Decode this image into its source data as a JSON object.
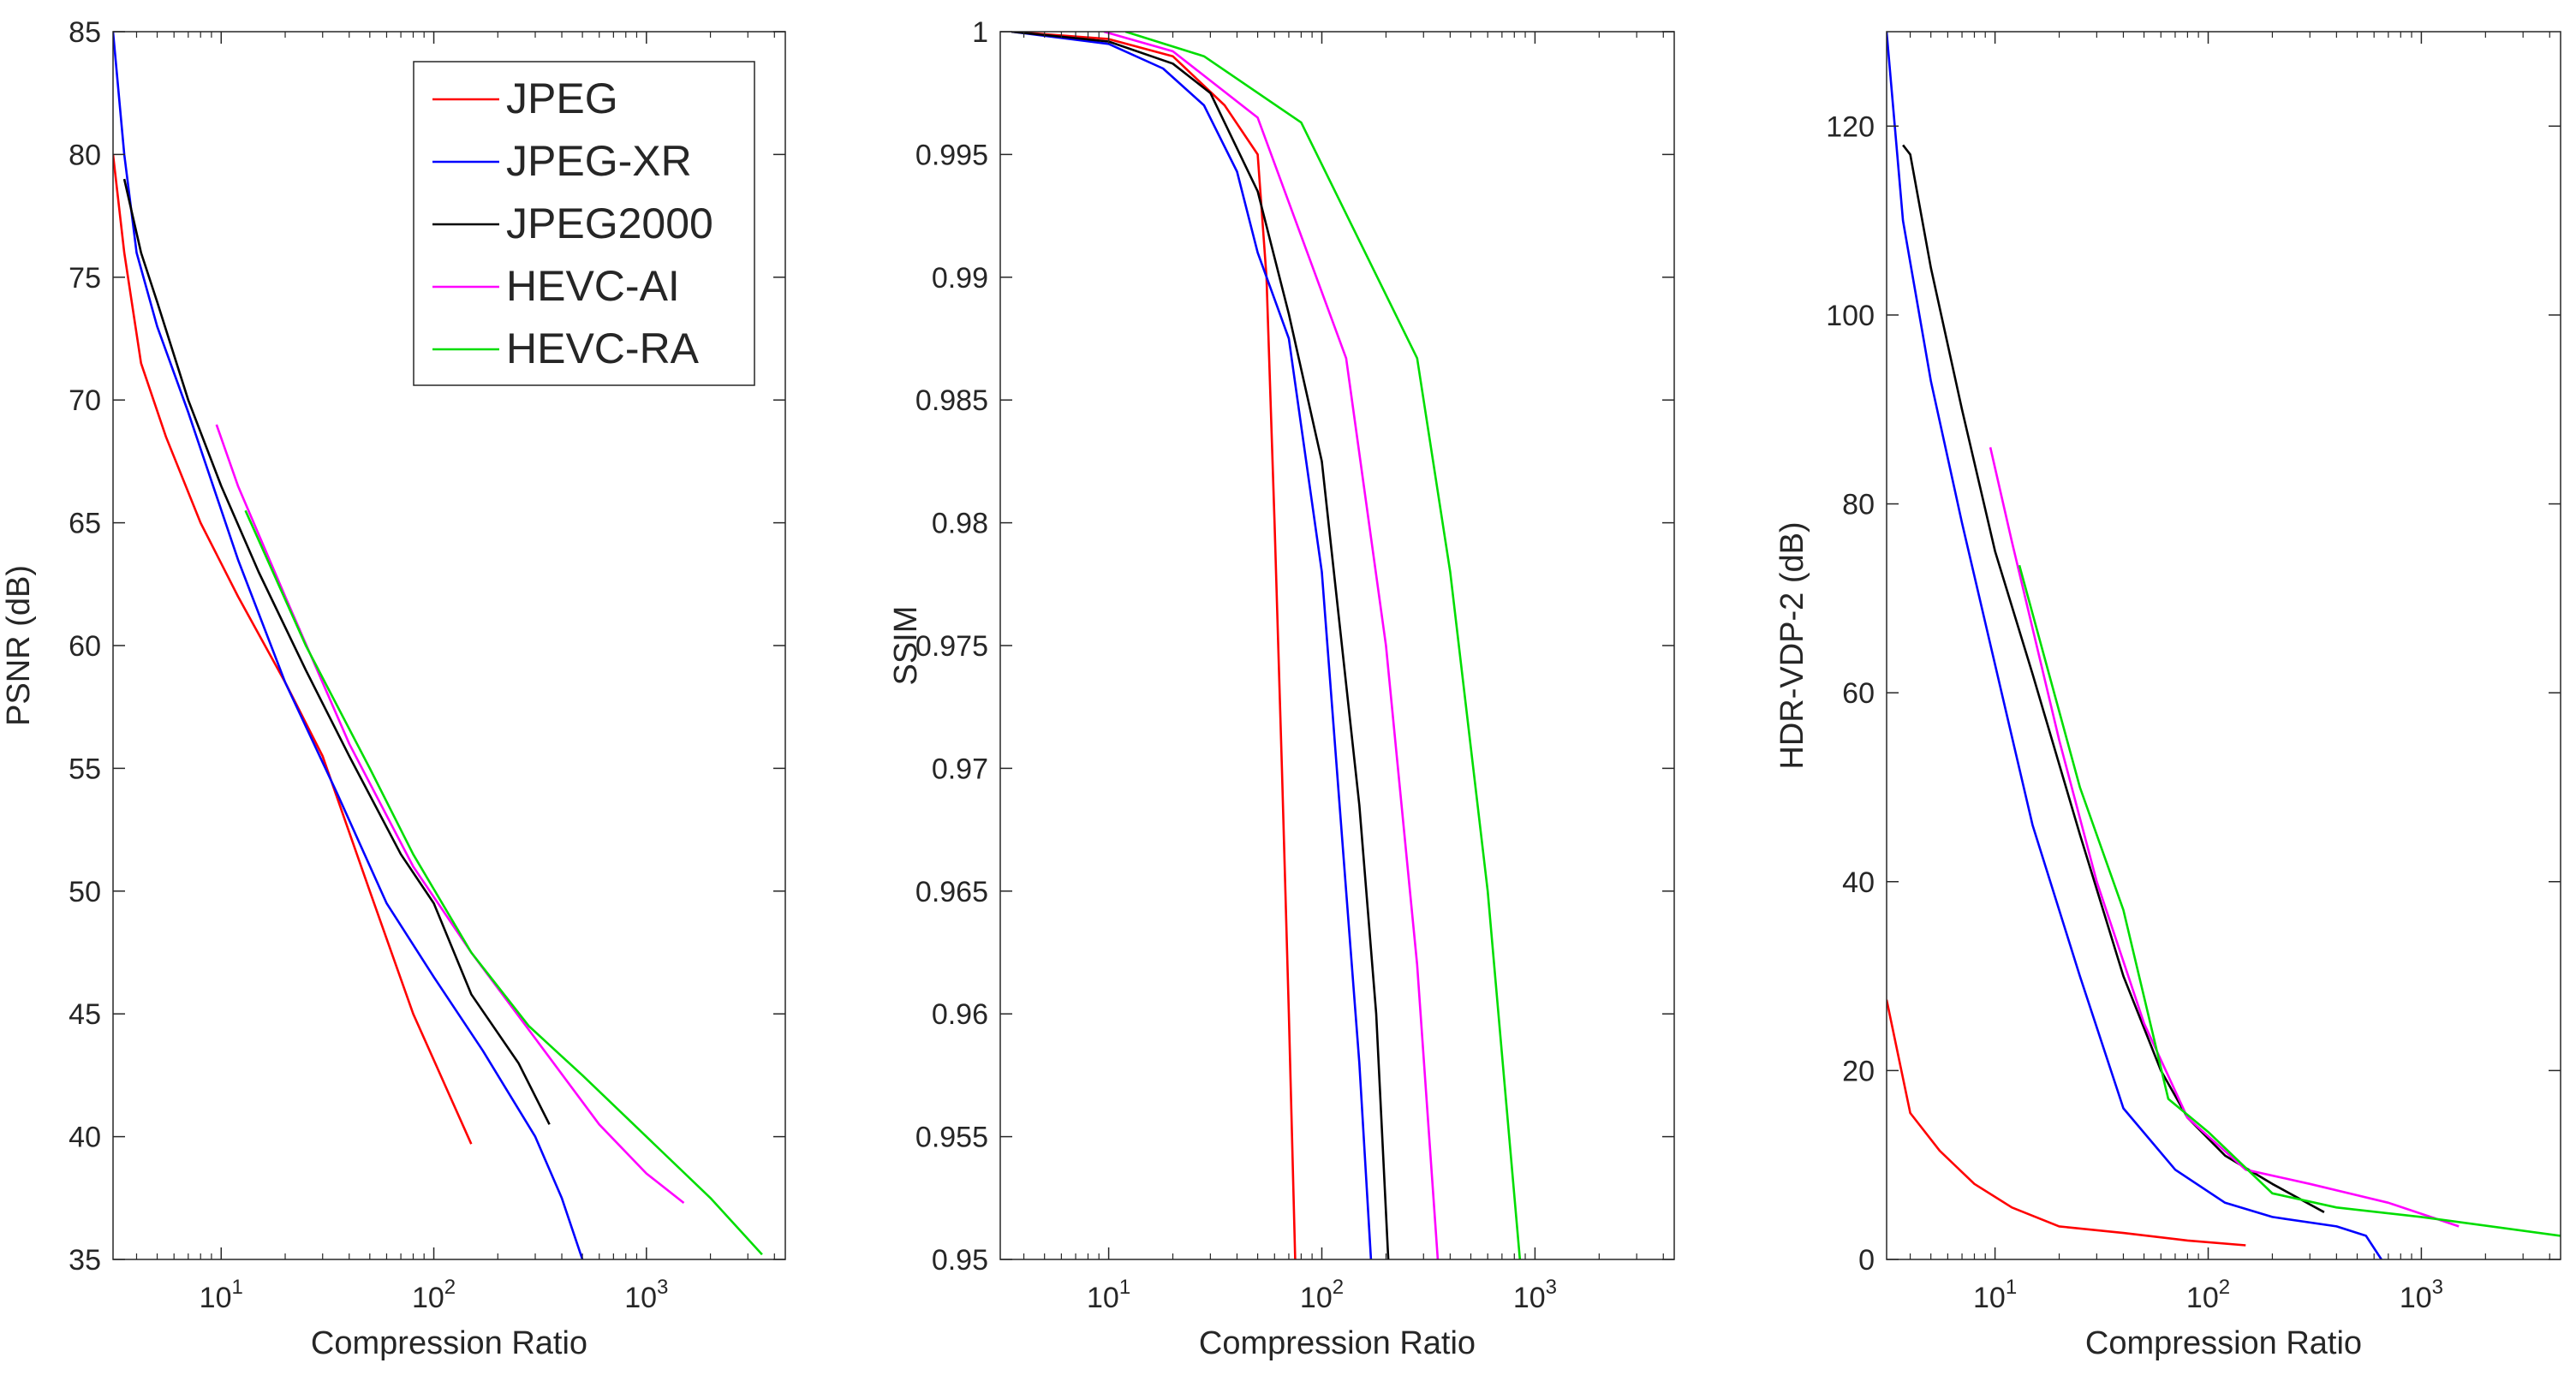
{
  "colors": {
    "JPEG": "#ff0000",
    "JPEG-XR": "#0000ff",
    "JPEG2000": "#000000",
    "HEVC-AI": "#ff00ff",
    "HEVC-RA": "#00dd00",
    "axis": "#262626"
  },
  "chart_data": [
    {
      "type": "line",
      "xscale": "log",
      "xlabel": "Compression Ratio",
      "ylabel": "PSNR (dB)",
      "xlim": [
        3.1,
        4500
      ],
      "ylim": [
        35,
        85
      ],
      "xticks": [
        10,
        100,
        1000
      ],
      "yticks": [
        35,
        40,
        45,
        50,
        55,
        60,
        65,
        70,
        75,
        80,
        85
      ],
      "ytick_labels": [
        "35",
        "40",
        "45",
        "50",
        "55",
        "60",
        "65",
        "70",
        "75",
        "80",
        "85"
      ],
      "legend": {
        "position": "top-right",
        "entries": [
          "JPEG",
          "JPEG-XR",
          "JPEG2000",
          "HEVC-AI",
          "HEVC-RA"
        ]
      },
      "series": [
        {
          "name": "JPEG",
          "points": [
            [
              3.1,
              80
            ],
            [
              3.5,
              76
            ],
            [
              4.2,
              71.5
            ],
            [
              5.5,
              68.5
            ],
            [
              8,
              65
            ],
            [
              12,
              62
            ],
            [
              20,
              58.5
            ],
            [
              30,
              55.5
            ],
            [
              50,
              50
            ],
            [
              80,
              45
            ],
            [
              150,
              39.7
            ]
          ]
        },
        {
          "name": "JPEG-XR",
          "points": [
            [
              3.1,
              85
            ],
            [
              3.5,
              80
            ],
            [
              4,
              76
            ],
            [
              5,
              73
            ],
            [
              7,
              69.5
            ],
            [
              12,
              63.5
            ],
            [
              20,
              58.5
            ],
            [
              35,
              54
            ],
            [
              60,
              49.5
            ],
            [
              100,
              46.5
            ],
            [
              170,
              43.5
            ],
            [
              300,
              40
            ],
            [
              400,
              37.5
            ],
            [
              500,
              35
            ]
          ]
        },
        {
          "name": "JPEG2000",
          "points": [
            [
              3.5,
              79
            ],
            [
              4.2,
              76
            ],
            [
              5,
              74
            ],
            [
              7,
              70
            ],
            [
              10,
              66.5
            ],
            [
              15,
              63
            ],
            [
              25,
              59
            ],
            [
              40,
              55.5
            ],
            [
              70,
              51.5
            ],
            [
              100,
              49.5
            ],
            [
              150,
              45.8
            ],
            [
              250,
              43
            ],
            [
              350,
              40.5
            ]
          ]
        },
        {
          "name": "HEVC-AI",
          "points": [
            [
              9.5,
              69
            ],
            [
              12,
              66.5
            ],
            [
              20,
              62
            ],
            [
              40,
              56
            ],
            [
              80,
              51
            ],
            [
              150,
              47.5
            ],
            [
              300,
              44
            ],
            [
              600,
              40.5
            ],
            [
              1000,
              38.5
            ],
            [
              1500,
              37.3
            ]
          ]
        },
        {
          "name": "HEVC-RA",
          "points": [
            [
              13,
              65.5
            ],
            [
              25,
              60
            ],
            [
              50,
              55
            ],
            [
              80,
              51.5
            ],
            [
              150,
              47.5
            ],
            [
              280,
              44.5
            ],
            [
              500,
              42.5
            ],
            [
              1000,
              40
            ],
            [
              2000,
              37.5
            ],
            [
              3500,
              35.2
            ]
          ]
        }
      ]
    },
    {
      "type": "line",
      "xscale": "log",
      "xlabel": "Compression Ratio",
      "ylabel": "SSIM",
      "xlim": [
        3.1,
        4500
      ],
      "ylim": [
        0.95,
        1.0
      ],
      "xticks": [
        10,
        100,
        1000
      ],
      "yticks": [
        0.95,
        0.955,
        0.96,
        0.965,
        0.97,
        0.975,
        0.98,
        0.985,
        0.99,
        0.995,
        1.0
      ],
      "ytick_labels": [
        "0.95",
        "0.955",
        "0.96",
        "0.965",
        "0.97",
        "0.975",
        "0.98",
        "0.985",
        "0.99",
        "0.995",
        "1"
      ],
      "series": [
        {
          "name": "JPEG",
          "points": [
            [
              3.5,
              1.0
            ],
            [
              10,
              0.9997
            ],
            [
              20,
              0.999
            ],
            [
              35,
              0.997
            ],
            [
              50,
              0.995
            ],
            [
              55,
              0.99
            ],
            [
              60,
              0.98
            ],
            [
              65,
              0.97
            ],
            [
              70,
              0.96
            ],
            [
              75,
              0.95
            ]
          ]
        },
        {
          "name": "JPEG-XR",
          "points": [
            [
              3.5,
              1.0
            ],
            [
              10,
              0.9995
            ],
            [
              18,
              0.9985
            ],
            [
              28,
              0.997
            ],
            [
              40,
              0.9943
            ],
            [
              50,
              0.991
            ],
            [
              70,
              0.9875
            ],
            [
              100,
              0.978
            ],
            [
              130,
              0.965
            ],
            [
              150,
              0.958
            ],
            [
              170,
              0.95
            ]
          ]
        },
        {
          "name": "JPEG2000",
          "points": [
            [
              3.5,
              1.0
            ],
            [
              10,
              0.9996
            ],
            [
              20,
              0.9987
            ],
            [
              30,
              0.9975
            ],
            [
              50,
              0.9935
            ],
            [
              70,
              0.9885
            ],
            [
              100,
              0.9825
            ],
            [
              150,
              0.9685
            ],
            [
              180,
              0.96
            ],
            [
              205,
              0.95
            ]
          ]
        },
        {
          "name": "HEVC-AI",
          "points": [
            [
              9.5,
              1.0
            ],
            [
              20,
              0.9992
            ],
            [
              50,
              0.9965
            ],
            [
              130,
              0.9867
            ],
            [
              200,
              0.975
            ],
            [
              280,
              0.962
            ],
            [
              350,
              0.95
            ]
          ]
        },
        {
          "name": "HEVC-RA",
          "points": [
            [
              12,
              1.0
            ],
            [
              28,
              0.999
            ],
            [
              80,
              0.9963
            ],
            [
              280,
              0.9867
            ],
            [
              400,
              0.978
            ],
            [
              600,
              0.965
            ],
            [
              850,
              0.95
            ]
          ]
        }
      ]
    },
    {
      "type": "line",
      "xscale": "log",
      "xlabel": "Compression Ratio",
      "ylabel": "HDR-VDP-2 (dB)",
      "xlim": [
        3.1,
        4500
      ],
      "ylim": [
        0,
        130
      ],
      "xticks": [
        10,
        100,
        1000
      ],
      "yticks": [
        0,
        20,
        40,
        60,
        80,
        100,
        120
      ],
      "ytick_labels": [
        "0",
        "20",
        "40",
        "60",
        "80",
        "100",
        "120"
      ],
      "series": [
        {
          "name": "JPEG",
          "points": [
            [
              3.1,
              27.5
            ],
            [
              4,
              15.5
            ],
            [
              5.5,
              11.5
            ],
            [
              8,
              8
            ],
            [
              12,
              5.5
            ],
            [
              20,
              3.5
            ],
            [
              40,
              2.8
            ],
            [
              80,
              2
            ],
            [
              150,
              1.5
            ]
          ]
        },
        {
          "name": "JPEG-XR",
          "points": [
            [
              3.1,
              130
            ],
            [
              3.7,
              110
            ],
            [
              5,
              93
            ],
            [
              7,
              78
            ],
            [
              10,
              63
            ],
            [
              15,
              46
            ],
            [
              25,
              30
            ],
            [
              40,
              16
            ],
            [
              70,
              9.5
            ],
            [
              120,
              6
            ],
            [
              200,
              4.5
            ],
            [
              400,
              3.5
            ],
            [
              550,
              2.5
            ],
            [
              650,
              0
            ]
          ]
        },
        {
          "name": "JPEG2000",
          "points": [
            [
              3.7,
              118
            ],
            [
              4,
              117
            ],
            [
              5,
              105
            ],
            [
              7,
              90
            ],
            [
              10,
              75
            ],
            [
              15,
              62
            ],
            [
              25,
              45
            ],
            [
              40,
              30
            ],
            [
              60,
              20
            ],
            [
              80,
              15
            ],
            [
              120,
              11
            ],
            [
              200,
              8
            ],
            [
              350,
              5
            ]
          ]
        },
        {
          "name": "HEVC-AI",
          "points": [
            [
              9.5,
              86
            ],
            [
              12,
              76
            ],
            [
              20,
              55
            ],
            [
              30,
              40
            ],
            [
              50,
              25
            ],
            [
              80,
              15
            ],
            [
              150,
              9.5
            ],
            [
              300,
              8
            ],
            [
              700,
              6
            ],
            [
              1500,
              3.5
            ]
          ]
        },
        {
          "name": "HEVC-RA",
          "points": [
            [
              13,
              73.5
            ],
            [
              25,
              50
            ],
            [
              40,
              37
            ],
            [
              65,
              17
            ],
            [
              100,
              13.5
            ],
            [
              200,
              7
            ],
            [
              400,
              5.5
            ],
            [
              1000,
              4.5
            ],
            [
              4500,
              2.5
            ]
          ]
        }
      ]
    }
  ]
}
